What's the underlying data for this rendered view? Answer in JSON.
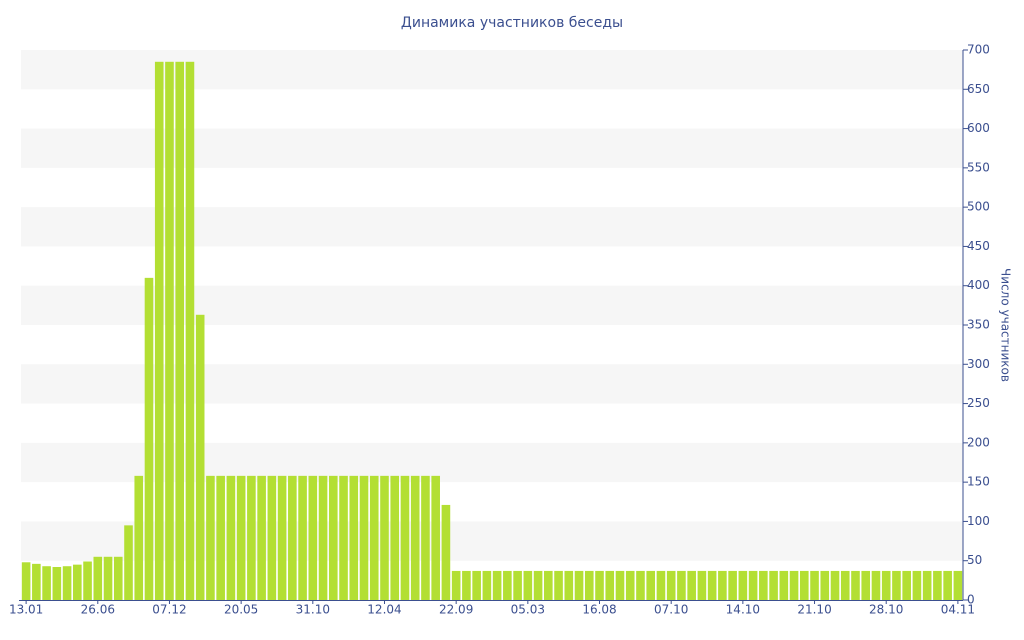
{
  "chart_data": {
    "type": "bar",
    "title": "Динамика участников беседы",
    "y_axis_label": "Число участников",
    "categories": [
      "13.01",
      null,
      null,
      null,
      null,
      null,
      null,
      "26.06",
      null,
      null,
      null,
      null,
      null,
      null,
      "07.12",
      null,
      null,
      null,
      null,
      null,
      null,
      "20.05",
      null,
      null,
      null,
      null,
      null,
      null,
      "31.10",
      null,
      null,
      null,
      null,
      null,
      null,
      "12.04",
      null,
      null,
      null,
      null,
      null,
      null,
      "22.09",
      null,
      null,
      null,
      null,
      null,
      null,
      "05.03",
      null,
      null,
      null,
      null,
      null,
      null,
      "16.08",
      null,
      null,
      null,
      null,
      null,
      null,
      "07.10",
      null,
      null,
      null,
      null,
      null,
      null,
      "14.10",
      null,
      null,
      null,
      null,
      null,
      null,
      "21.10",
      null,
      null,
      null,
      null,
      null,
      null,
      "28.10",
      null,
      null,
      null,
      null,
      null,
      null,
      "04.11"
    ],
    "values": [
      48,
      46,
      43,
      42,
      43,
      45,
      49,
      55,
      55,
      55,
      95,
      158,
      410,
      685,
      685,
      685,
      685,
      363,
      158,
      158,
      158,
      158,
      158,
      158,
      158,
      158,
      158,
      158,
      158,
      158,
      158,
      158,
      158,
      158,
      158,
      158,
      158,
      158,
      158,
      158,
      158,
      121,
      37,
      37,
      37,
      37,
      37,
      37,
      37,
      37,
      37,
      37,
      37,
      37,
      37,
      37,
      37,
      37,
      37,
      37,
      37,
      37,
      37,
      37,
      37,
      37,
      37,
      37,
      37,
      37,
      37,
      37,
      37,
      37,
      37,
      37,
      37,
      37,
      37,
      37,
      37,
      37,
      37,
      37,
      37,
      37,
      37,
      37,
      37,
      37,
      37,
      37
    ],
    "color": "#b3df33",
    "ylim": [
      0,
      700
    ],
    "yticks": [
      0,
      50,
      100,
      150,
      200,
      250,
      300,
      350,
      400,
      450,
      500,
      550,
      600,
      650,
      700
    ],
    "grid": true
  }
}
